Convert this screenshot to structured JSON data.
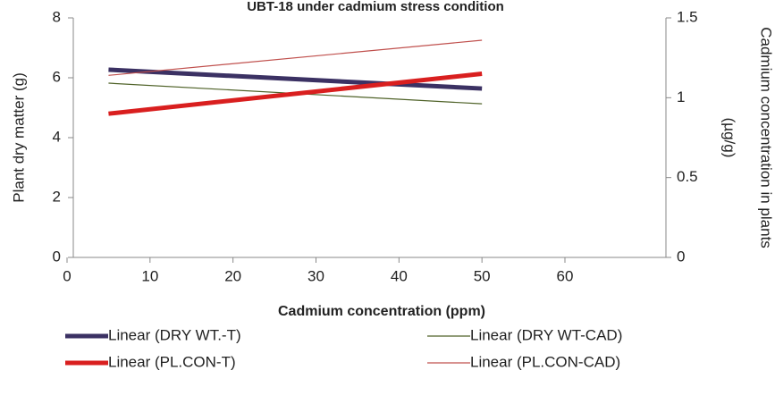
{
  "chart_data": {
    "type": "line",
    "title": "UBT-18 under cadmium stress condition",
    "xlabel": "Cadmium concentration (ppm)",
    "ylabel": "Plant dry matter (g)",
    "y2label": [
      "Cadmium concentration in plants",
      "(µg/g)"
    ],
    "x": [
      5,
      50
    ],
    "xlim": [
      0,
      60
    ],
    "xticks": [
      0,
      10,
      20,
      30,
      40,
      50,
      60
    ],
    "ylim": [
      0,
      8
    ],
    "yticks": [
      0,
      2,
      4,
      6,
      8
    ],
    "y2lim": [
      0,
      1.5
    ],
    "y2ticks": [
      0,
      0.5,
      1,
      1.5
    ],
    "series": [
      {
        "name": "Linear (DRY WT.-T)",
        "color": "#3b3163",
        "width": 5,
        "values": [
          6.27,
          5.64
        ]
      },
      {
        "name": "Linear (DRY WT-CAD)",
        "color": "#4f6228",
        "width": 1.2,
        "values": [
          5.82,
          5.13
        ]
      },
      {
        "name": "Linear (PL.CON-T)",
        "color": "#d91f1f",
        "width": 5,
        "axis": "y2",
        "values": [
          0.9,
          1.15
        ]
      },
      {
        "name": "Linear (PL.CON-CAD)",
        "color": "#c0504d",
        "width": 1.2,
        "axis": "y2",
        "values": [
          1.14,
          1.36
        ]
      }
    ],
    "legend": "bottom"
  }
}
